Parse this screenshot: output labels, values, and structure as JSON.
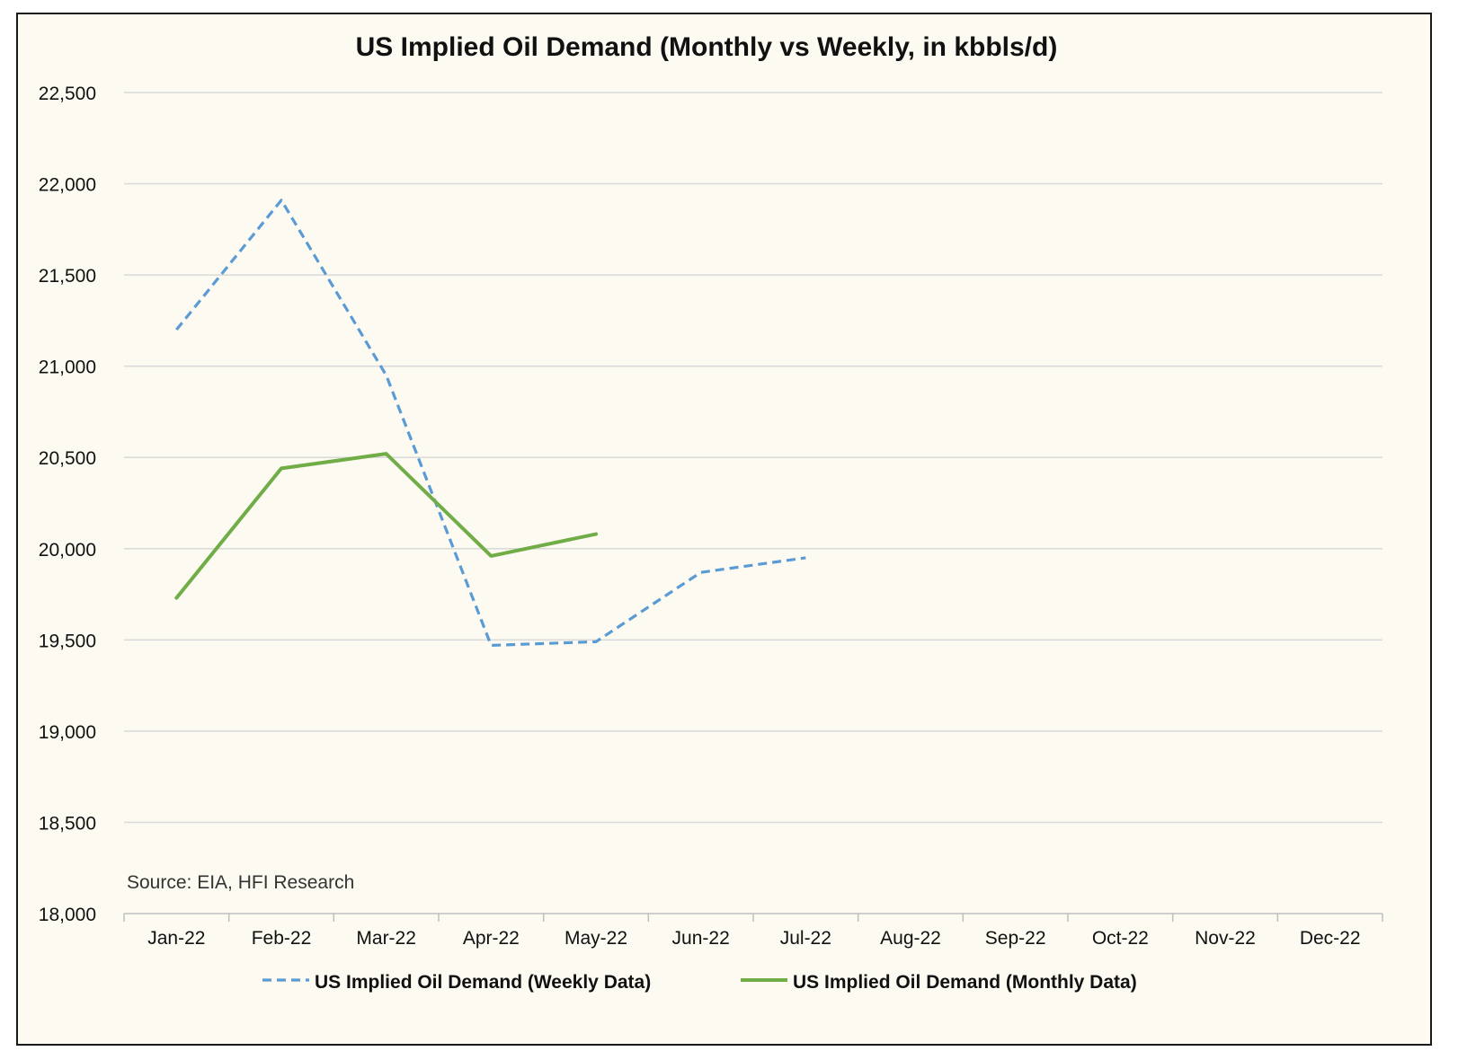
{
  "chart_data": {
    "type": "line",
    "title": "US Implied Oil Demand (Monthly vs Weekly, in kbbls/d)",
    "xlabel": "",
    "ylabel": "",
    "categories": [
      "Jan-22",
      "Feb-22",
      "Mar-22",
      "Apr-22",
      "May-22",
      "Jun-22",
      "Jul-22",
      "Aug-22",
      "Sep-22",
      "Oct-22",
      "Nov-22",
      "Dec-22"
    ],
    "y_ticks": [
      "22,500",
      "22,000",
      "21,500",
      "21,000",
      "20,500",
      "20,000",
      "19,500",
      "19,000",
      "18,500",
      "18,000"
    ],
    "ylim": [
      18000,
      22500
    ],
    "grid": "horizontal",
    "legend_position": "bottom",
    "series": [
      {
        "name": "US Implied Oil Demand (Weekly Data)",
        "color": "#5b9bd5",
        "style": "dashed",
        "values": [
          21200,
          21910,
          20950,
          19470,
          19490,
          19870,
          19950,
          null,
          null,
          null,
          null,
          null
        ]
      },
      {
        "name": "US Implied Oil Demand (Monthly Data)",
        "color": "#70ad47",
        "style": "solid",
        "values": [
          19730,
          20440,
          20520,
          19960,
          20080,
          null,
          null,
          null,
          null,
          null,
          null,
          null
        ]
      }
    ],
    "annotation": "Source: EIA, HFI Research"
  }
}
